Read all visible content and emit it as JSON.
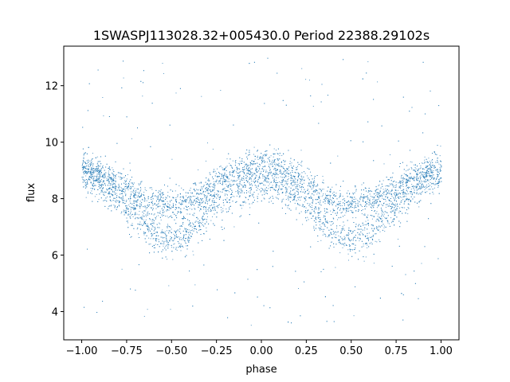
{
  "chart_data": {
    "type": "scatter",
    "title": "1SWASPJ113028.32+005430.0 Period 22388.29102s",
    "xlabel": "phase",
    "ylabel": "flux",
    "xlim": [
      -1.1,
      1.1
    ],
    "ylim": [
      3.0,
      13.4
    ],
    "x_ticks": [
      -1.0,
      -0.75,
      -0.5,
      -0.25,
      0.0,
      0.25,
      0.5,
      0.75,
      1.0
    ],
    "x_tick_labels": [
      "−1.00",
      "−0.75",
      "−0.50",
      "−0.25",
      "0.00",
      "0.25",
      "0.50",
      "0.75",
      "1.00"
    ],
    "y_ticks": [
      4,
      6,
      8,
      10,
      12
    ],
    "y_tick_labels": [
      "4",
      "6",
      "8",
      "10",
      "12"
    ],
    "grid": false,
    "legend": "none",
    "marker_color": "#1f77b4",
    "series": [
      {
        "x": [
          -1.0,
          -0.9,
          -0.8,
          -0.7,
          -0.6,
          -0.5,
          -0.4,
          -0.3,
          -0.2,
          -0.1,
          0.0,
          0.1,
          0.2,
          0.3,
          0.4,
          0.5,
          0.6,
          0.7,
          0.8,
          0.9,
          1.0
        ],
        "upper_branch_flux": [
          9.1,
          8.9,
          8.6,
          8.2,
          7.9,
          7.8,
          7.9,
          8.3,
          8.8,
          9.1,
          9.2,
          9.1,
          8.8,
          8.3,
          7.9,
          7.8,
          7.9,
          8.2,
          8.6,
          8.9,
          9.1
        ],
        "lower_branch_flux": [
          8.9,
          8.6,
          8.0,
          7.4,
          6.8,
          6.5,
          6.8,
          7.5,
          8.1,
          8.4,
          8.5,
          8.4,
          8.1,
          7.5,
          6.8,
          6.5,
          6.8,
          7.4,
          8.0,
          8.6,
          8.9
        ]
      }
    ],
    "outlier_flux_range": [
      3.5,
      13.1
    ]
  }
}
